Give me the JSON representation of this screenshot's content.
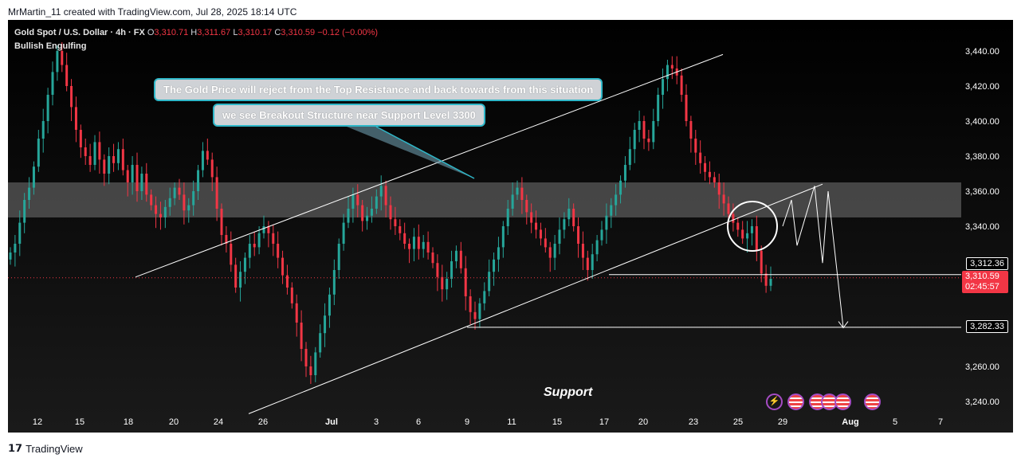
{
  "attribution": "MrMartin_11 created with TradingView.com, Jul 28, 2025 18:14 UTC",
  "header": {
    "symbol": "Gold Spot / U.S. Dollar · 4h · FX",
    "o_label": "O",
    "o_value": "3,310.71",
    "h_label": "H",
    "h_value": "3,311.67",
    "l_label": "L",
    "l_value": "3,310.17",
    "c_label": "C",
    "c_value": "3,310.59",
    "change": "−0.12 (−0.00%)",
    "indicator": "Bullish Engulfing"
  },
  "annotations": {
    "note1": "The Gold Price will reject from the Top Resistance and back towards from this situation",
    "note2": "we see Breakout Structure near Support Level 3300",
    "support_label": "Support"
  },
  "price_tags": {
    "level_upper": "3,312.36",
    "last_price": "3,310.59",
    "countdown": "02:45:57",
    "level_support": "3,282.33"
  },
  "footer": {
    "brand": "TradingView"
  },
  "colors": {
    "bull": "#26a69a",
    "bear": "#f23645",
    "bg": "#000000",
    "zone": "#5a5a5a",
    "callout_border": "#2fb7c8"
  },
  "icons": [
    "lightning-icon",
    "us-flag-icon",
    "us-flag-icon",
    "us-flag-icon",
    "us-flag-icon",
    "us-flag-icon"
  ],
  "chart_data": {
    "type": "candlestick",
    "timeframe": "4h",
    "x_ticks": [
      "12",
      "15",
      "18",
      "20",
      "24",
      "26",
      "Jul",
      "3",
      "6",
      "9",
      "11",
      "15",
      "17",
      "20",
      "23",
      "25",
      "29",
      "Aug",
      "5",
      "7"
    ],
    "y_ticks": [
      3240,
      3260,
      3280,
      3300,
      3320,
      3340,
      3360,
      3380,
      3400,
      3420,
      3440
    ],
    "y_tick_labels": [
      "3,240.00",
      "3,260.00",
      "",
      "",
      "",
      "3,340.00",
      "3,360.00",
      "3,380.00",
      "3,400.00",
      "3,420.00",
      "3,440.00"
    ],
    "ylim": [
      3232,
      3450
    ],
    "resistance_zone": [
      3345,
      3365
    ],
    "support_levels": [
      3312.36,
      3282.33
    ],
    "channel_upper": {
      "from": [
        "Jun 20",
        3311
      ],
      "to": [
        "Jul 23",
        3438
      ]
    },
    "channel_lower": {
      "from": [
        "Jun 25",
        3233
      ],
      "to": [
        "Aug 1",
        3364
      ]
    },
    "projection": [
      3340,
      3355,
      3329,
      3363,
      3319,
      3360,
      3282
    ],
    "closes": [
      3325,
      3330,
      3342,
      3355,
      3362,
      3374,
      3390,
      3400,
      3415,
      3428,
      3440,
      3432,
      3420,
      3408,
      3395,
      3385,
      3380,
      3375,
      3388,
      3378,
      3370,
      3380,
      3376,
      3384,
      3372,
      3365,
      3375,
      3360,
      3370,
      3358,
      3352,
      3347,
      3345,
      3351,
      3356,
      3362,
      3358,
      3349,
      3352,
      3360,
      3372,
      3383,
      3378,
      3368,
      3350,
      3335,
      3330,
      3318,
      3305,
      3314,
      3322,
      3330,
      3328,
      3336,
      3340,
      3336,
      3330,
      3322,
      3312,
      3305,
      3296,
      3285,
      3270,
      3260,
      3255,
      3268,
      3279,
      3289,
      3301,
      3315,
      3330,
      3342,
      3350,
      3358,
      3352,
      3343,
      3346,
      3350,
      3357,
      3363,
      3352,
      3344,
      3340,
      3336,
      3330,
      3327,
      3334,
      3327,
      3331,
      3325,
      3319,
      3311,
      3304,
      3310,
      3320,
      3326,
      3316,
      3300,
      3291,
      3287,
      3296,
      3303,
      3314,
      3321,
      3328,
      3340,
      3350,
      3358,
      3362,
      3355,
      3348,
      3342,
      3338,
      3333,
      3328,
      3322,
      3330,
      3338,
      3344,
      3350,
      3340,
      3330,
      3322,
      3315,
      3324,
      3332,
      3338,
      3346,
      3352,
      3358,
      3366,
      3375,
      3384,
      3395,
      3400,
      3390,
      3388,
      3400,
      3415,
      3424,
      3432,
      3430,
      3426,
      3415,
      3400,
      3390,
      3382,
      3376,
      3371,
      3368,
      3365,
      3358,
      3353,
      3347,
      3342,
      3338,
      3333,
      3336,
      3340,
      3326,
      3313,
      3306,
      3310
    ]
  }
}
